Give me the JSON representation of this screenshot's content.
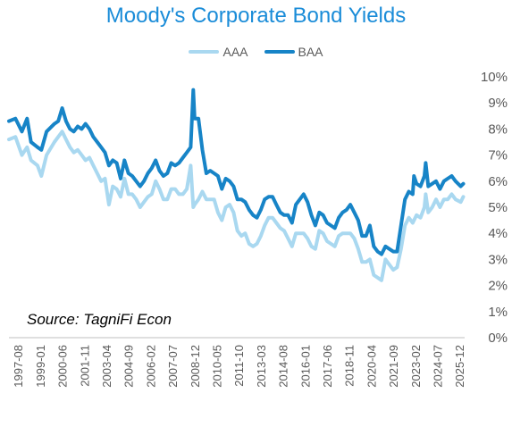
{
  "chart_data": {
    "type": "line",
    "title": "Moody's Corporate Bond Yields",
    "source": "Source: TagniFi Econ",
    "ylim": [
      0,
      10
    ],
    "y_ticks": [
      "0%",
      "1%",
      "2%",
      "3%",
      "4%",
      "5%",
      "6%",
      "7%",
      "8%",
      "9%",
      "10%"
    ],
    "x_range": [
      "1997-01",
      "2026-04"
    ],
    "x_ticks": [
      "1997-08",
      "1999-01",
      "2000-06",
      "2001-11",
      "2003-04",
      "2004-09",
      "2006-02",
      "2007-07",
      "2008-12",
      "2010-05",
      "2011-10",
      "2013-03",
      "2014-08",
      "2016-01",
      "2017-06",
      "2018-11",
      "2020-04",
      "2021-09",
      "2023-02",
      "2024-07",
      "2025-12"
    ],
    "legend_position": "top",
    "grid": false,
    "series": [
      {
        "name": "AAA",
        "color": "#a9d8f0",
        "points": [
          [
            "1997-01",
            7.6
          ],
          [
            "1997-06",
            7.7
          ],
          [
            "1997-11",
            7.0
          ],
          [
            "1998-03",
            7.3
          ],
          [
            "1998-06",
            6.8
          ],
          [
            "1998-11",
            6.6
          ],
          [
            "1999-02",
            6.2
          ],
          [
            "1999-06",
            7.0
          ],
          [
            "1999-12",
            7.5
          ],
          [
            "2000-03",
            7.7
          ],
          [
            "2000-06",
            7.9
          ],
          [
            "2000-09",
            7.6
          ],
          [
            "2000-12",
            7.3
          ],
          [
            "2001-03",
            7.1
          ],
          [
            "2001-06",
            7.2
          ],
          [
            "2001-09",
            7.0
          ],
          [
            "2001-12",
            6.8
          ],
          [
            "2002-03",
            6.9
          ],
          [
            "2002-06",
            6.6
          ],
          [
            "2002-09",
            6.3
          ],
          [
            "2002-12",
            6.0
          ],
          [
            "2003-03",
            6.1
          ],
          [
            "2003-06",
            5.1
          ],
          [
            "2003-09",
            5.8
          ],
          [
            "2003-12",
            5.7
          ],
          [
            "2004-03",
            5.4
          ],
          [
            "2004-06",
            6.1
          ],
          [
            "2004-09",
            5.5
          ],
          [
            "2004-12",
            5.5
          ],
          [
            "2005-03",
            5.3
          ],
          [
            "2005-06",
            5.0
          ],
          [
            "2005-09",
            5.2
          ],
          [
            "2005-12",
            5.4
          ],
          [
            "2006-03",
            5.5
          ],
          [
            "2006-06",
            6.0
          ],
          [
            "2006-09",
            5.7
          ],
          [
            "2006-12",
            5.3
          ],
          [
            "2007-03",
            5.3
          ],
          [
            "2007-06",
            5.7
          ],
          [
            "2007-09",
            5.7
          ],
          [
            "2007-12",
            5.5
          ],
          [
            "2008-03",
            5.5
          ],
          [
            "2008-06",
            5.7
          ],
          [
            "2008-09",
            6.6
          ],
          [
            "2008-11",
            5.0
          ],
          [
            "2008-12",
            5.1
          ],
          [
            "2009-03",
            5.3
          ],
          [
            "2009-06",
            5.6
          ],
          [
            "2009-09",
            5.3
          ],
          [
            "2009-12",
            5.3
          ],
          [
            "2010-03",
            5.3
          ],
          [
            "2010-06",
            4.8
          ],
          [
            "2010-09",
            4.5
          ],
          [
            "2010-12",
            5.0
          ],
          [
            "2011-03",
            5.1
          ],
          [
            "2011-06",
            4.8
          ],
          [
            "2011-09",
            4.1
          ],
          [
            "2011-12",
            3.9
          ],
          [
            "2012-03",
            4.0
          ],
          [
            "2012-06",
            3.6
          ],
          [
            "2012-09",
            3.5
          ],
          [
            "2012-12",
            3.6
          ],
          [
            "2013-03",
            3.9
          ],
          [
            "2013-06",
            4.3
          ],
          [
            "2013-09",
            4.6
          ],
          [
            "2013-12",
            4.6
          ],
          [
            "2014-03",
            4.4
          ],
          [
            "2014-06",
            4.2
          ],
          [
            "2014-09",
            4.1
          ],
          [
            "2014-12",
            3.8
          ],
          [
            "2015-03",
            3.5
          ],
          [
            "2015-06",
            4.0
          ],
          [
            "2015-09",
            4.0
          ],
          [
            "2015-12",
            4.0
          ],
          [
            "2016-03",
            3.8
          ],
          [
            "2016-06",
            3.5
          ],
          [
            "2016-09",
            3.4
          ],
          [
            "2016-12",
            4.1
          ],
          [
            "2017-03",
            4.0
          ],
          [
            "2017-06",
            3.7
          ],
          [
            "2017-09",
            3.6
          ],
          [
            "2017-12",
            3.5
          ],
          [
            "2018-03",
            3.9
          ],
          [
            "2018-06",
            4.0
          ],
          [
            "2018-09",
            4.0
          ],
          [
            "2018-12",
            4.0
          ],
          [
            "2019-03",
            3.8
          ],
          [
            "2019-06",
            3.4
          ],
          [
            "2019-09",
            2.9
          ],
          [
            "2019-12",
            2.9
          ],
          [
            "2020-03",
            3.0
          ],
          [
            "2020-06",
            2.4
          ],
          [
            "2020-09",
            2.3
          ],
          [
            "2020-12",
            2.2
          ],
          [
            "2021-03",
            3.0
          ],
          [
            "2021-06",
            2.8
          ],
          [
            "2021-09",
            2.6
          ],
          [
            "2021-12",
            2.7
          ],
          [
            "2022-03",
            3.4
          ],
          [
            "2022-06",
            4.3
          ],
          [
            "2022-09",
            4.6
          ],
          [
            "2022-12",
            4.4
          ],
          [
            "2023-03",
            4.7
          ],
          [
            "2023-06",
            4.6
          ],
          [
            "2023-09",
            5.0
          ],
          [
            "2023-10",
            5.5
          ],
          [
            "2023-12",
            4.8
          ],
          [
            "2024-03",
            5.0
          ],
          [
            "2024-06",
            5.3
          ],
          [
            "2024-09",
            5.0
          ],
          [
            "2024-12",
            5.3
          ],
          [
            "2025-03",
            5.3
          ],
          [
            "2025-06",
            5.5
          ],
          [
            "2025-09",
            5.3
          ],
          [
            "2026-01",
            5.2
          ],
          [
            "2026-03",
            5.4
          ]
        ]
      },
      {
        "name": "BAA",
        "color": "#1784c7",
        "points": [
          [
            "1997-01",
            8.3
          ],
          [
            "1997-06",
            8.4
          ],
          [
            "1997-11",
            7.9
          ],
          [
            "1998-03",
            8.4
          ],
          [
            "1998-06",
            7.5
          ],
          [
            "1998-11",
            7.3
          ],
          [
            "1999-02",
            7.2
          ],
          [
            "1999-06",
            7.9
          ],
          [
            "1999-12",
            8.2
          ],
          [
            "2000-03",
            8.3
          ],
          [
            "2000-06",
            8.8
          ],
          [
            "2000-09",
            8.3
          ],
          [
            "2000-12",
            8.0
          ],
          [
            "2001-03",
            7.9
          ],
          [
            "2001-06",
            8.1
          ],
          [
            "2001-09",
            8.0
          ],
          [
            "2001-12",
            8.2
          ],
          [
            "2002-03",
            8.0
          ],
          [
            "2002-06",
            7.7
          ],
          [
            "2002-09",
            7.5
          ],
          [
            "2002-12",
            7.3
          ],
          [
            "2003-03",
            7.1
          ],
          [
            "2003-06",
            6.6
          ],
          [
            "2003-09",
            6.8
          ],
          [
            "2003-12",
            6.7
          ],
          [
            "2004-03",
            6.1
          ],
          [
            "2004-06",
            6.8
          ],
          [
            "2004-09",
            6.3
          ],
          [
            "2004-12",
            6.2
          ],
          [
            "2005-03",
            6.0
          ],
          [
            "2005-06",
            5.8
          ],
          [
            "2005-09",
            6.0
          ],
          [
            "2005-12",
            6.3
          ],
          [
            "2006-03",
            6.5
          ],
          [
            "2006-06",
            6.8
          ],
          [
            "2006-09",
            6.4
          ],
          [
            "2006-12",
            6.2
          ],
          [
            "2007-03",
            6.3
          ],
          [
            "2007-06",
            6.7
          ],
          [
            "2007-09",
            6.6
          ],
          [
            "2007-12",
            6.7
          ],
          [
            "2008-03",
            6.9
          ],
          [
            "2008-06",
            7.1
          ],
          [
            "2008-09",
            7.3
          ],
          [
            "2008-11",
            9.5
          ],
          [
            "2008-12",
            8.4
          ],
          [
            "2009-03",
            8.4
          ],
          [
            "2009-06",
            7.2
          ],
          [
            "2009-09",
            6.3
          ],
          [
            "2009-12",
            6.4
          ],
          [
            "2010-03",
            6.3
          ],
          [
            "2010-06",
            6.2
          ],
          [
            "2010-09",
            5.7
          ],
          [
            "2010-12",
            6.1
          ],
          [
            "2011-03",
            6.0
          ],
          [
            "2011-06",
            5.8
          ],
          [
            "2011-09",
            5.3
          ],
          [
            "2011-12",
            5.3
          ],
          [
            "2012-03",
            5.2
          ],
          [
            "2012-06",
            4.9
          ],
          [
            "2012-09",
            4.7
          ],
          [
            "2012-12",
            4.6
          ],
          [
            "2013-03",
            4.9
          ],
          [
            "2013-06",
            5.3
          ],
          [
            "2013-09",
            5.4
          ],
          [
            "2013-12",
            5.4
          ],
          [
            "2014-03",
            5.1
          ],
          [
            "2014-06",
            4.8
          ],
          [
            "2014-09",
            4.7
          ],
          [
            "2014-12",
            4.7
          ],
          [
            "2015-03",
            4.4
          ],
          [
            "2015-06",
            5.1
          ],
          [
            "2015-09",
            5.3
          ],
          [
            "2015-12",
            5.5
          ],
          [
            "2016-03",
            5.2
          ],
          [
            "2016-06",
            4.7
          ],
          [
            "2016-09",
            4.3
          ],
          [
            "2016-12",
            4.8
          ],
          [
            "2017-03",
            4.7
          ],
          [
            "2017-06",
            4.4
          ],
          [
            "2017-09",
            4.3
          ],
          [
            "2017-12",
            4.2
          ],
          [
            "2018-03",
            4.6
          ],
          [
            "2018-06",
            4.8
          ],
          [
            "2018-09",
            4.9
          ],
          [
            "2018-12",
            5.1
          ],
          [
            "2019-03",
            4.8
          ],
          [
            "2019-06",
            4.5
          ],
          [
            "2019-09",
            3.9
          ],
          [
            "2019-12",
            3.9
          ],
          [
            "2020-03",
            4.3
          ],
          [
            "2020-06",
            3.5
          ],
          [
            "2020-09",
            3.3
          ],
          [
            "2020-12",
            3.2
          ],
          [
            "2021-03",
            3.5
          ],
          [
            "2021-06",
            3.4
          ],
          [
            "2021-09",
            3.3
          ],
          [
            "2021-12",
            3.3
          ],
          [
            "2022-03",
            4.3
          ],
          [
            "2022-06",
            5.3
          ],
          [
            "2022-09",
            5.6
          ],
          [
            "2022-12",
            5.5
          ],
          [
            "2023-01",
            6.2
          ],
          [
            "2023-03",
            5.9
          ],
          [
            "2023-06",
            5.8
          ],
          [
            "2023-09",
            6.2
          ],
          [
            "2023-10",
            6.7
          ],
          [
            "2023-12",
            5.8
          ],
          [
            "2024-03",
            5.9
          ],
          [
            "2024-06",
            6.0
          ],
          [
            "2024-09",
            5.7
          ],
          [
            "2024-12",
            6.0
          ],
          [
            "2025-03",
            6.1
          ],
          [
            "2025-06",
            6.2
          ],
          [
            "2025-09",
            6.0
          ],
          [
            "2026-01",
            5.8
          ],
          [
            "2026-03",
            5.9
          ]
        ]
      }
    ]
  }
}
